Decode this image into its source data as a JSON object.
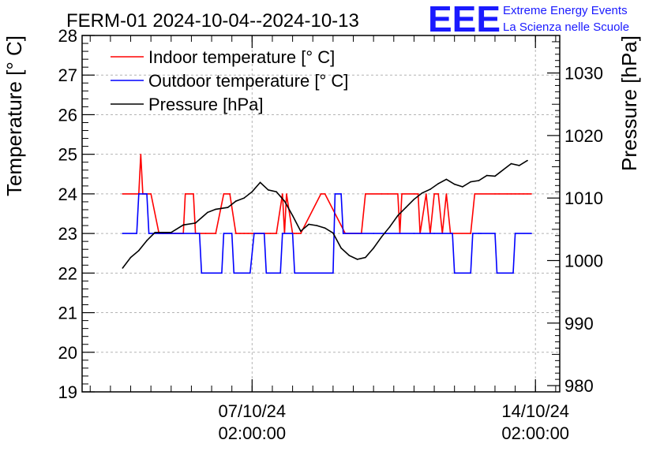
{
  "chart_data": {
    "type": "line",
    "title": "FERM-01 2024-10-04--2024-10-13",
    "ylabel": "Temperature [° C]",
    "y2label": "Pressure [hPa]",
    "ylim": [
      19,
      28
    ],
    "y2lim": [
      979,
      1036
    ],
    "y_ticks": [
      "19",
      "20",
      "21",
      "22",
      "23",
      "24",
      "25",
      "26",
      "27",
      "28"
    ],
    "y2_ticks": [
      "980",
      "990",
      "1000",
      "1010",
      "1020",
      "1030"
    ],
    "x_ticks": [
      {
        "x": 3.0,
        "line1": "07/10/24",
        "line2": "02:00:00"
      },
      {
        "x": 10.0,
        "line1": "14/10/24",
        "line2": "02:00:00"
      }
    ],
    "xlim": [
      -1.2,
      10.6
    ],
    "grid": true,
    "legend_position": "top-left",
    "series": [
      {
        "name": "Indoor temperature [° C]",
        "color": "#ff0000",
        "axis": "left",
        "x": [
          -0.2,
          0.2,
          0.25,
          0.3,
          0.5,
          0.7,
          0.9,
          1.1,
          1.3,
          1.35,
          1.55,
          1.6,
          1.65,
          1.85,
          2.1,
          2.3,
          2.45,
          2.6,
          2.7,
          2.8,
          2.9,
          3.3,
          3.45,
          3.6,
          3.75,
          3.8,
          3.85,
          4.0,
          4.05,
          4.1,
          4.15,
          4.2,
          4.7,
          4.8,
          5.3,
          5.7,
          5.8,
          6.2,
          6.35,
          6.6,
          6.65,
          6.7,
          7.0,
          7.1,
          7.15,
          7.3,
          7.4,
          7.5,
          7.6,
          7.7,
          7.8,
          7.9,
          8.4,
          8.5,
          9.0,
          9.1,
          9.3,
          9.4,
          9.5,
          9.6,
          9.7,
          9.8,
          9.9
        ],
        "y": [
          24,
          24,
          25,
          24,
          24,
          23,
          23,
          23,
          23,
          24,
          24,
          23,
          23,
          23,
          23,
          24,
          24,
          23,
          23,
          23,
          23,
          23,
          23,
          23,
          24,
          23,
          24,
          23,
          23,
          23,
          23,
          23,
          24,
          24,
          23,
          23,
          24,
          24,
          24,
          24,
          23,
          24,
          24,
          24,
          23,
          24,
          23,
          24,
          24,
          23,
          24,
          23,
          23,
          24,
          24,
          24,
          24,
          24,
          24,
          24,
          24,
          24,
          24
        ]
      },
      {
        "name": "Outdoor temperature [° C]",
        "color": "#0000ff",
        "axis": "left",
        "x": [
          -0.2,
          0.15,
          0.2,
          0.4,
          0.45,
          0.8,
          1.1,
          1.7,
          1.75,
          2.25,
          2.3,
          2.5,
          2.55,
          2.95,
          3.05,
          3.3,
          3.35,
          3.45,
          3.7,
          3.75,
          4.0,
          4.05,
          5.0,
          5.05,
          5.2,
          5.25,
          6.0,
          6.3,
          7.0,
          7.5,
          7.95,
          8.0,
          8.4,
          8.45,
          8.6,
          8.65,
          9.0,
          9.05,
          9.45,
          9.5,
          9.9
        ],
        "y": [
          23,
          23,
          24,
          24,
          23,
          23,
          23,
          23,
          22,
          22,
          23,
          23,
          22,
          22,
          23,
          23,
          22,
          22,
          22,
          23,
          23,
          22,
          22,
          24,
          24,
          23,
          23,
          23,
          23,
          23,
          23,
          22,
          22,
          23,
          23,
          23,
          23,
          22,
          22,
          23,
          23
        ]
      },
      {
        "name": "Pressure [hPa]",
        "color": "#000000",
        "axis": "right",
        "x": [
          -0.2,
          0.0,
          0.2,
          0.4,
          0.6,
          0.8,
          1.0,
          1.3,
          1.6,
          1.9,
          2.1,
          2.4,
          2.6,
          2.8,
          3.0,
          3.2,
          3.4,
          3.6,
          3.8,
          4.0,
          4.2,
          4.4,
          4.6,
          4.8,
          5.0,
          5.2,
          5.4,
          5.6,
          5.8,
          6.0,
          6.2,
          6.4,
          6.6,
          6.8,
          7.0,
          7.2,
          7.4,
          7.6,
          7.8,
          8.0,
          8.2,
          8.4,
          8.6,
          8.8,
          9.0,
          9.2,
          9.4,
          9.6,
          9.8
        ],
        "y": [
          998.8,
          1000.5,
          1001.6,
          1003.2,
          1004.5,
          1004.5,
          1004.5,
          1005.7,
          1006.0,
          1007.7,
          1008.2,
          1008.5,
          1009.5,
          1010.0,
          1011.0,
          1012.5,
          1011.3,
          1011.0,
          1009.5,
          1007.2,
          1004.7,
          1005.8,
          1005.6,
          1005.2,
          1004.4,
          1002.0,
          1000.8,
          1000.2,
          1000.5,
          1002.0,
          1003.8,
          1005.4,
          1007.2,
          1008.5,
          1009.8,
          1010.8,
          1011.4,
          1012.3,
          1013.0,
          1012.2,
          1011.8,
          1012.6,
          1012.8,
          1013.6,
          1013.5,
          1014.5,
          1015.5,
          1015.2,
          1016.0
        ]
      }
    ]
  },
  "logo": {
    "mark": "EEE",
    "line1": "Extreme Energy Events",
    "line2": "La Scienza nelle Scuole"
  }
}
